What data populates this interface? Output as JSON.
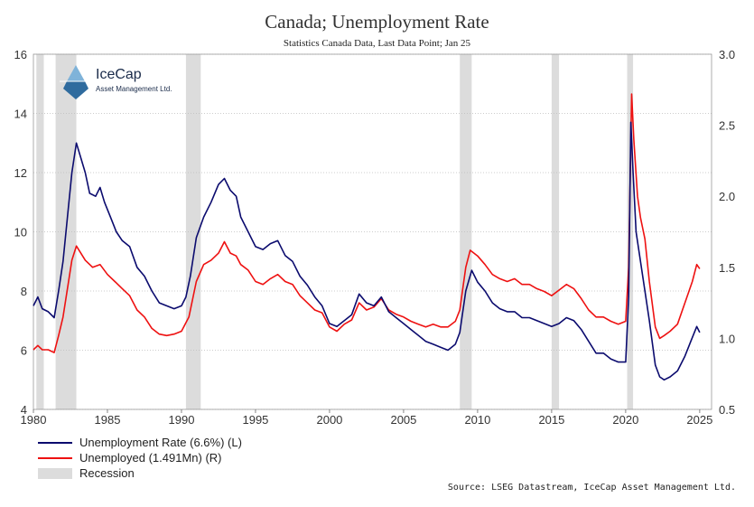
{
  "chart_data": {
    "type": "line",
    "title": "Canada; Unemployment Rate",
    "subtitle": "Statistics Canada Data, Last Data Point; Jan 25",
    "source": "Source: LSEG Datastream, IceCap Asset Management Ltd.",
    "logo": {
      "name": "IceCap",
      "sub": "Asset Management Ltd."
    },
    "x_ticks": [
      "1980",
      "1985",
      "1990",
      "1995",
      "2000",
      "2005",
      "2010",
      "2015",
      "2020",
      "2025"
    ],
    "y_left_ticks": [
      "4",
      "6",
      "8",
      "10",
      "12",
      "14",
      "16"
    ],
    "y_right_ticks": [
      "0.5",
      "1.0",
      "1.5",
      "2.0",
      "2.5",
      "3.0"
    ],
    "xlim": [
      1980,
      2025.8
    ],
    "ylim_left": [
      4,
      16
    ],
    "ylim_right": [
      0.5,
      3.0
    ],
    "grid": true,
    "legend_placement": "bottom-left",
    "colors": {
      "rate": "#0b0b6e",
      "unemployed": "#ee1111",
      "recession": "#dcdcdc"
    },
    "legend": [
      {
        "label": "Unemployment Rate (6.6%) (L)",
        "type": "line",
        "color": "#0b0b6e"
      },
      {
        "label": "Unemployed (1.491Mn) (R)",
        "type": "line",
        "color": "#ee1111"
      },
      {
        "label": "Recession",
        "type": "box",
        "color": "#dcdcdc"
      }
    ],
    "recessions": [
      [
        1980.2,
        1980.7
      ],
      [
        1981.5,
        1982.9
      ],
      [
        1990.3,
        1991.3
      ],
      [
        2008.8,
        2009.6
      ],
      [
        2015.0,
        2015.5
      ],
      [
        2020.1,
        2020.5
      ]
    ],
    "series": [
      {
        "axis": "left",
        "points": [
          [
            1980.0,
            7.5
          ],
          [
            1980.3,
            7.8
          ],
          [
            1980.6,
            7.4
          ],
          [
            1981.0,
            7.3
          ],
          [
            1981.4,
            7.1
          ],
          [
            1981.7,
            8.0
          ],
          [
            1982.0,
            9.0
          ],
          [
            1982.3,
            10.5
          ],
          [
            1982.6,
            12.0
          ],
          [
            1982.9,
            13.0
          ],
          [
            1983.2,
            12.5
          ],
          [
            1983.5,
            12.0
          ],
          [
            1983.8,
            11.3
          ],
          [
            1984.2,
            11.2
          ],
          [
            1984.5,
            11.5
          ],
          [
            1984.8,
            11.0
          ],
          [
            1985.2,
            10.5
          ],
          [
            1985.6,
            10.0
          ],
          [
            1986.0,
            9.7
          ],
          [
            1986.5,
            9.5
          ],
          [
            1987.0,
            8.8
          ],
          [
            1987.5,
            8.5
          ],
          [
            1988.0,
            8.0
          ],
          [
            1988.5,
            7.6
          ],
          [
            1989.0,
            7.5
          ],
          [
            1989.5,
            7.4
          ],
          [
            1990.0,
            7.5
          ],
          [
            1990.3,
            7.8
          ],
          [
            1990.6,
            8.5
          ],
          [
            1991.0,
            9.8
          ],
          [
            1991.5,
            10.5
          ],
          [
            1992.0,
            11.0
          ],
          [
            1992.5,
            11.6
          ],
          [
            1992.9,
            11.8
          ],
          [
            1993.3,
            11.4
          ],
          [
            1993.7,
            11.2
          ],
          [
            1994.0,
            10.5
          ],
          [
            1994.5,
            10.0
          ],
          [
            1995.0,
            9.5
          ],
          [
            1995.5,
            9.4
          ],
          [
            1996.0,
            9.6
          ],
          [
            1996.5,
            9.7
          ],
          [
            1997.0,
            9.2
          ],
          [
            1997.5,
            9.0
          ],
          [
            1998.0,
            8.5
          ],
          [
            1998.5,
            8.2
          ],
          [
            1999.0,
            7.8
          ],
          [
            1999.5,
            7.5
          ],
          [
            2000.0,
            6.9
          ],
          [
            2000.5,
            6.8
          ],
          [
            2001.0,
            7.0
          ],
          [
            2001.5,
            7.2
          ],
          [
            2002.0,
            7.9
          ],
          [
            2002.5,
            7.6
          ],
          [
            2003.0,
            7.5
          ],
          [
            2003.5,
            7.8
          ],
          [
            2004.0,
            7.3
          ],
          [
            2004.5,
            7.1
          ],
          [
            2005.0,
            6.9
          ],
          [
            2005.5,
            6.7
          ],
          [
            2006.0,
            6.5
          ],
          [
            2006.5,
            6.3
          ],
          [
            2007.0,
            6.2
          ],
          [
            2007.5,
            6.1
          ],
          [
            2008.0,
            6.0
          ],
          [
            2008.5,
            6.2
          ],
          [
            2008.8,
            6.6
          ],
          [
            2009.2,
            8.0
          ],
          [
            2009.6,
            8.7
          ],
          [
            2010.0,
            8.3
          ],
          [
            2010.5,
            8.0
          ],
          [
            2011.0,
            7.6
          ],
          [
            2011.5,
            7.4
          ],
          [
            2012.0,
            7.3
          ],
          [
            2012.5,
            7.3
          ],
          [
            2013.0,
            7.1
          ],
          [
            2013.5,
            7.1
          ],
          [
            2014.0,
            7.0
          ],
          [
            2014.5,
            6.9
          ],
          [
            2015.0,
            6.8
          ],
          [
            2015.5,
            6.9
          ],
          [
            2016.0,
            7.1
          ],
          [
            2016.5,
            7.0
          ],
          [
            2017.0,
            6.7
          ],
          [
            2017.5,
            6.3
          ],
          [
            2018.0,
            5.9
          ],
          [
            2018.5,
            5.9
          ],
          [
            2019.0,
            5.7
          ],
          [
            2019.5,
            5.6
          ],
          [
            2020.0,
            5.6
          ],
          [
            2020.2,
            7.8
          ],
          [
            2020.35,
            13.7
          ],
          [
            2020.5,
            12.0
          ],
          [
            2020.7,
            10.0
          ],
          [
            2021.0,
            9.0
          ],
          [
            2021.3,
            8.0
          ],
          [
            2021.6,
            7.0
          ],
          [
            2022.0,
            5.5
          ],
          [
            2022.3,
            5.1
          ],
          [
            2022.6,
            5.0
          ],
          [
            2023.0,
            5.1
          ],
          [
            2023.5,
            5.3
          ],
          [
            2024.0,
            5.8
          ],
          [
            2024.4,
            6.3
          ],
          [
            2024.8,
            6.8
          ],
          [
            2025.0,
            6.6
          ]
        ]
      },
      {
        "axis": "right",
        "points": [
          [
            1980.0,
            0.92
          ],
          [
            1980.3,
            0.95
          ],
          [
            1980.6,
            0.92
          ],
          [
            1981.0,
            0.92
          ],
          [
            1981.4,
            0.9
          ],
          [
            1981.7,
            1.02
          ],
          [
            1982.0,
            1.15
          ],
          [
            1982.3,
            1.35
          ],
          [
            1982.6,
            1.55
          ],
          [
            1982.9,
            1.65
          ],
          [
            1983.2,
            1.6
          ],
          [
            1983.5,
            1.55
          ],
          [
            1984.0,
            1.5
          ],
          [
            1984.5,
            1.52
          ],
          [
            1985.0,
            1.45
          ],
          [
            1985.5,
            1.4
          ],
          [
            1986.0,
            1.35
          ],
          [
            1986.5,
            1.3
          ],
          [
            1987.0,
            1.2
          ],
          [
            1987.5,
            1.15
          ],
          [
            1988.0,
            1.07
          ],
          [
            1988.5,
            1.03
          ],
          [
            1989.0,
            1.02
          ],
          [
            1989.5,
            1.03
          ],
          [
            1990.0,
            1.05
          ],
          [
            1990.5,
            1.15
          ],
          [
            1991.0,
            1.4
          ],
          [
            1991.5,
            1.52
          ],
          [
            1992.0,
            1.55
          ],
          [
            1992.5,
            1.6
          ],
          [
            1992.9,
            1.68
          ],
          [
            1993.3,
            1.6
          ],
          [
            1993.7,
            1.58
          ],
          [
            1994.0,
            1.52
          ],
          [
            1994.5,
            1.48
          ],
          [
            1995.0,
            1.4
          ],
          [
            1995.5,
            1.38
          ],
          [
            1996.0,
            1.42
          ],
          [
            1996.5,
            1.45
          ],
          [
            1997.0,
            1.4
          ],
          [
            1997.5,
            1.38
          ],
          [
            1998.0,
            1.3
          ],
          [
            1998.5,
            1.25
          ],
          [
            1999.0,
            1.2
          ],
          [
            1999.5,
            1.18
          ],
          [
            2000.0,
            1.08
          ],
          [
            2000.5,
            1.05
          ],
          [
            2001.0,
            1.1
          ],
          [
            2001.5,
            1.13
          ],
          [
            2002.0,
            1.25
          ],
          [
            2002.5,
            1.2
          ],
          [
            2003.0,
            1.22
          ],
          [
            2003.5,
            1.28
          ],
          [
            2004.0,
            1.2
          ],
          [
            2004.5,
            1.17
          ],
          [
            2005.0,
            1.15
          ],
          [
            2005.5,
            1.12
          ],
          [
            2006.0,
            1.1
          ],
          [
            2006.5,
            1.08
          ],
          [
            2007.0,
            1.1
          ],
          [
            2007.5,
            1.08
          ],
          [
            2008.0,
            1.08
          ],
          [
            2008.5,
            1.12
          ],
          [
            2008.8,
            1.2
          ],
          [
            2009.2,
            1.5
          ],
          [
            2009.5,
            1.62
          ],
          [
            2010.0,
            1.58
          ],
          [
            2010.5,
            1.52
          ],
          [
            2011.0,
            1.45
          ],
          [
            2011.5,
            1.42
          ],
          [
            2012.0,
            1.4
          ],
          [
            2012.5,
            1.42
          ],
          [
            2013.0,
            1.38
          ],
          [
            2013.5,
            1.38
          ],
          [
            2014.0,
            1.35
          ],
          [
            2014.5,
            1.33
          ],
          [
            2015.0,
            1.3
          ],
          [
            2015.5,
            1.34
          ],
          [
            2016.0,
            1.38
          ],
          [
            2016.5,
            1.35
          ],
          [
            2017.0,
            1.28
          ],
          [
            2017.5,
            1.2
          ],
          [
            2018.0,
            1.15
          ],
          [
            2018.5,
            1.15
          ],
          [
            2019.0,
            1.12
          ],
          [
            2019.5,
            1.1
          ],
          [
            2020.0,
            1.12
          ],
          [
            2020.2,
            1.5
          ],
          [
            2020.4,
            2.72
          ],
          [
            2020.55,
            2.4
          ],
          [
            2020.8,
            2.0
          ],
          [
            2021.0,
            1.85
          ],
          [
            2021.3,
            1.7
          ],
          [
            2021.6,
            1.4
          ],
          [
            2022.0,
            1.08
          ],
          [
            2022.3,
            1.0
          ],
          [
            2022.6,
            1.02
          ],
          [
            2023.0,
            1.05
          ],
          [
            2023.5,
            1.1
          ],
          [
            2024.0,
            1.25
          ],
          [
            2024.5,
            1.4
          ],
          [
            2024.8,
            1.52
          ],
          [
            2025.0,
            1.49
          ]
        ]
      }
    ]
  }
}
